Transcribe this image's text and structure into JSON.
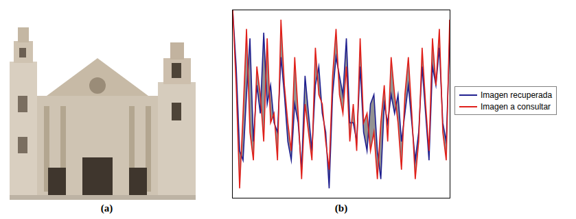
{
  "panel_labels": [
    "(a)",
    "(b)"
  ],
  "chart_data": {
    "type": "line",
    "x": [
      0,
      1,
      2,
      3,
      4,
      5,
      6,
      7,
      8,
      9,
      10,
      11,
      12,
      13,
      14,
      15,
      16,
      17,
      18,
      19,
      20,
      21,
      22,
      23,
      24,
      25,
      26,
      27,
      28,
      29,
      30,
      31,
      32,
      33,
      34,
      35,
      36,
      37,
      38,
      39,
      40,
      41,
      42,
      43,
      44,
      45,
      46,
      47,
      48,
      49,
      50,
      51,
      52,
      53,
      54,
      55,
      56,
      57,
      58,
      59,
      60,
      61,
      62,
      63
    ],
    "xlim": [
      0,
      63
    ],
    "ylim": [
      0,
      100
    ],
    "tick_labels": false,
    "grid": false,
    "legend": "right",
    "series": [
      {
        "name": "Imagen recuperada",
        "color": "#1f1f8f",
        "values": [
          100,
          70,
          25,
          20,
          55,
          85,
          30,
          60,
          45,
          88,
          50,
          60,
          40,
          35,
          75,
          55,
          30,
          20,
          50,
          40,
          15,
          65,
          45,
          25,
          60,
          70,
          45,
          35,
          5,
          55,
          75,
          65,
          55,
          85,
          40,
          40,
          30,
          70,
          35,
          25,
          50,
          55,
          25,
          10,
          50,
          40,
          55,
          45,
          55,
          30,
          45,
          60,
          40,
          20,
          35,
          70,
          45,
          20,
          70,
          60,
          80,
          40,
          30,
          85
        ]
      },
      {
        "name": "Imagen a consultar",
        "color": "#e0201a",
        "values": [
          100,
          60,
          5,
          45,
          90,
          35,
          20,
          70,
          55,
          30,
          85,
          40,
          45,
          20,
          95,
          60,
          40,
          25,
          75,
          45,
          10,
          50,
          35,
          20,
          80,
          55,
          50,
          30,
          15,
          65,
          90,
          55,
          45,
          70,
          30,
          50,
          25,
          85,
          40,
          45,
          25,
          35,
          10,
          40,
          60,
          30,
          75,
          55,
          40,
          15,
          55,
          75,
          45,
          10,
          30,
          80,
          50,
          25,
          85,
          60,
          90,
          35,
          20,
          95
        ]
      }
    ]
  }
}
